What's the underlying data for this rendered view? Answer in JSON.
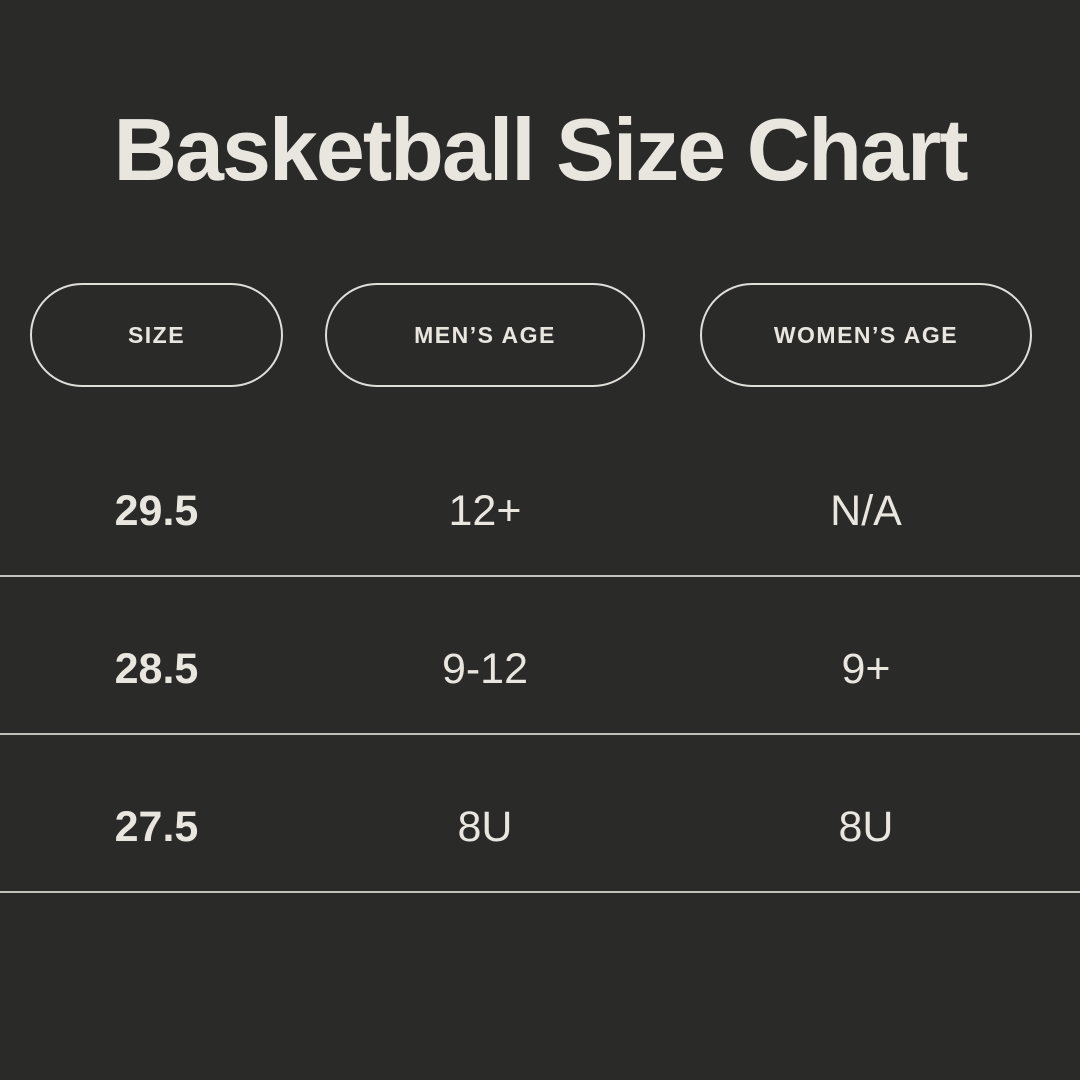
{
  "colors": {
    "background": "#2a2a29",
    "text": "#e9e6e0",
    "divider": "#c2c0bb",
    "pill_border": "#e0ded8"
  },
  "chart_data": {
    "type": "table",
    "title": "Basketball Size Chart",
    "columns": [
      "SIZE",
      "MEN’S AGE",
      "WOMEN’S AGE"
    ],
    "rows": [
      [
        "29.5",
        "12+",
        "N/A"
      ],
      [
        "28.5",
        "9-12",
        "9+"
      ],
      [
        "27.5",
        "8U",
        "8U"
      ]
    ],
    "layout_hints": {
      "legend": "none",
      "grid": "horizontal-dividers",
      "header_style": "outlined-pills"
    }
  }
}
